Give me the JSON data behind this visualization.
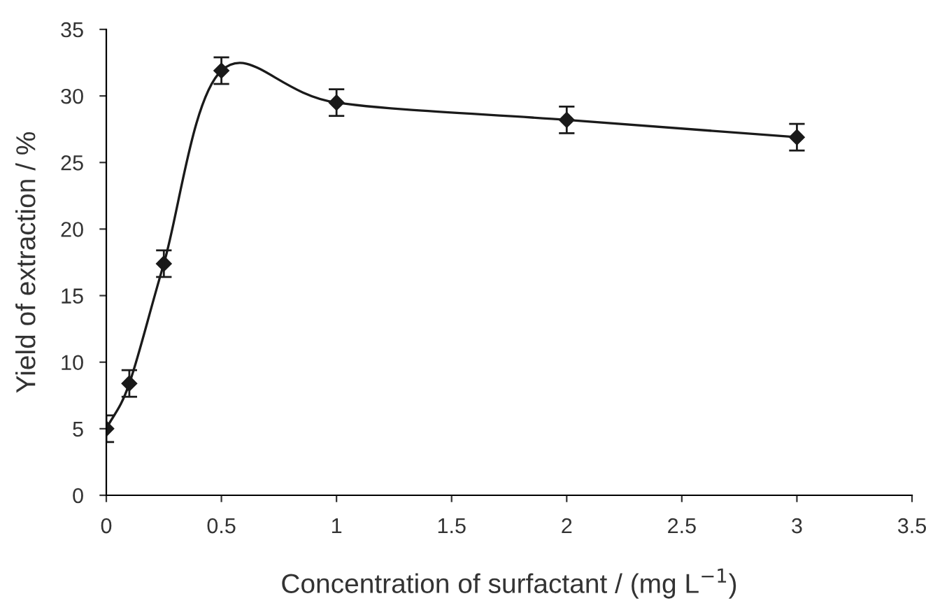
{
  "chart_data": {
    "type": "line",
    "xlabel": "Concentration of surfactant / (mg L$^{−1}$)",
    "ylabel": "Yield of extraction / %",
    "x": [
      0,
      0.1,
      0.25,
      0.5,
      1,
      2,
      3
    ],
    "series": [
      {
        "color": "#1a1a1a",
        "values": [
          5.0,
          8.4,
          17.4,
          31.9,
          29.5,
          28.2,
          26.9
        ],
        "errors": [
          1,
          1,
          1,
          1,
          1,
          1,
          1
        ]
      }
    ],
    "marker": "diamond",
    "line_style": "solid",
    "grid": false,
    "legend": false,
    "xlim": [
      0,
      3.5
    ],
    "xticks": [
      0,
      0.5,
      1,
      1.5,
      2,
      2.5,
      3,
      3.5
    ],
    "ylim": [
      0,
      35
    ],
    "yticks": [
      0,
      5,
      10,
      15,
      20,
      25,
      30,
      35
    ]
  }
}
